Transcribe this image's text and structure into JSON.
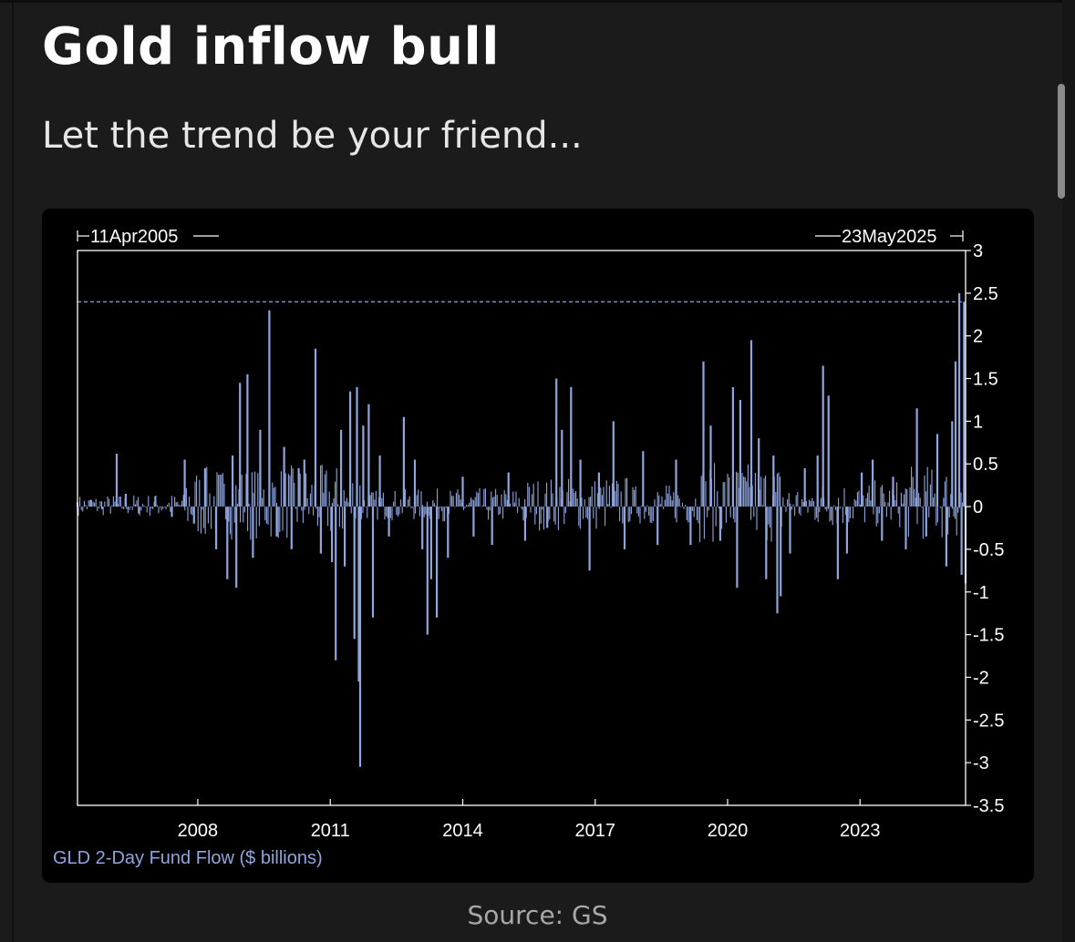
{
  "page": {
    "title": "Gold inflow bull",
    "subtitle": "Let the trend be your friend...",
    "source": "Source: GS"
  },
  "colors": {
    "background": "#1b1b1b",
    "chart_background": "#000000",
    "series": "#8fa5dd",
    "frame": "#ffffff",
    "reference_line": "#8fa5dd"
  },
  "chart_data": {
    "type": "bar",
    "title": "",
    "xlabel": "",
    "ylabel": "",
    "start_label": "11Apr2005",
    "end_label": "23May2025",
    "x_ticks": [
      "2008",
      "2011",
      "2014",
      "2017",
      "2020",
      "2023"
    ],
    "y_ticks": [
      "3",
      "2.5",
      "2",
      "1.5",
      "1",
      "0.5",
      "0",
      "-0.5",
      "-1",
      "-1.5",
      "-2",
      "-2.5",
      "-3",
      "-3.5"
    ],
    "ylim": [
      -3.5,
      3
    ],
    "xlim": [
      "2005-04-11",
      "2025-05-23"
    ],
    "y_axis_side": "right",
    "grid": false,
    "legend": "bottom-left",
    "reference_line": {
      "y": 2.4,
      "style": "dashed"
    },
    "series": [
      {
        "name": "GLD 2-Day Fund Flow ($ billions)",
        "points": [
          [
            "2005-04-11",
            0.05
          ],
          [
            "2005-08-01",
            0.08
          ],
          [
            "2005-11-01",
            -0.03
          ],
          [
            "2006-03-01",
            0.62
          ],
          [
            "2006-05-15",
            0.15
          ],
          [
            "2006-09-01",
            -0.08
          ],
          [
            "2007-01-15",
            0.12
          ],
          [
            "2007-06-01",
            -0.12
          ],
          [
            "2007-09-15",
            0.55
          ],
          [
            "2007-12-01",
            -0.2
          ],
          [
            "2008-03-01",
            0.45
          ],
          [
            "2008-06-01",
            -0.5
          ],
          [
            "2008-09-01",
            -0.85
          ],
          [
            "2008-10-15",
            0.6
          ],
          [
            "2008-11-15",
            -0.95
          ],
          [
            "2008-12-15",
            1.45
          ],
          [
            "2009-02-15",
            1.55
          ],
          [
            "2009-04-01",
            -0.6
          ],
          [
            "2009-06-01",
            0.9
          ],
          [
            "2009-08-15",
            2.3
          ],
          [
            "2009-10-15",
            -0.35
          ],
          [
            "2009-12-15",
            0.7
          ],
          [
            "2010-02-15",
            -0.5
          ],
          [
            "2010-04-15",
            0.45
          ],
          [
            "2010-06-01",
            0.55
          ],
          [
            "2010-09-01",
            1.85
          ],
          [
            "2010-10-15",
            -0.55
          ],
          [
            "2011-01-15",
            -0.65
          ],
          [
            "2011-02-15",
            -1.8
          ],
          [
            "2011-04-01",
            0.9
          ],
          [
            "2011-05-01",
            -0.7
          ],
          [
            "2011-06-15",
            1.35
          ],
          [
            "2011-07-20",
            -1.55
          ],
          [
            "2011-08-10",
            1.4
          ],
          [
            "2011-08-25",
            -2.05
          ],
          [
            "2011-09-05",
            -3.05
          ],
          [
            "2011-10-01",
            0.95
          ],
          [
            "2011-11-15",
            1.2
          ],
          [
            "2011-12-20",
            -1.3
          ],
          [
            "2012-02-15",
            0.6
          ],
          [
            "2012-05-01",
            -0.35
          ],
          [
            "2012-09-01",
            1.05
          ],
          [
            "2012-12-01",
            0.55
          ],
          [
            "2013-02-01",
            -0.5
          ],
          [
            "2013-03-15",
            -1.5
          ],
          [
            "2013-04-15",
            -0.85
          ],
          [
            "2013-06-01",
            -1.3
          ],
          [
            "2013-09-01",
            -0.6
          ],
          [
            "2014-01-01",
            0.35
          ],
          [
            "2014-04-01",
            -0.35
          ],
          [
            "2014-09-01",
            -0.45
          ],
          [
            "2015-01-15",
            0.4
          ],
          [
            "2015-06-01",
            -0.4
          ],
          [
            "2015-12-01",
            -0.25
          ],
          [
            "2016-02-15",
            1.5
          ],
          [
            "2016-04-01",
            0.9
          ],
          [
            "2016-06-15",
            1.4
          ],
          [
            "2016-09-01",
            0.55
          ],
          [
            "2016-11-15",
            -0.75
          ],
          [
            "2017-02-01",
            0.4
          ],
          [
            "2017-06-01",
            1.0
          ],
          [
            "2017-09-01",
            -0.5
          ],
          [
            "2018-02-01",
            0.65
          ],
          [
            "2018-06-01",
            -0.45
          ],
          [
            "2018-11-01",
            0.55
          ],
          [
            "2019-03-01",
            -0.45
          ],
          [
            "2019-06-15",
            1.7
          ],
          [
            "2019-08-15",
            0.95
          ],
          [
            "2019-11-01",
            -0.4
          ],
          [
            "2020-02-15",
            1.4
          ],
          [
            "2020-03-20",
            -0.95
          ],
          [
            "2020-04-15",
            1.25
          ],
          [
            "2020-07-15",
            1.95
          ],
          [
            "2020-09-15",
            0.8
          ],
          [
            "2020-11-15",
            -0.85
          ],
          [
            "2021-01-15",
            0.6
          ],
          [
            "2021-02-15",
            -1.25
          ],
          [
            "2021-03-15",
            -1.05
          ],
          [
            "2021-06-01",
            -0.55
          ],
          [
            "2021-10-01",
            0.45
          ],
          [
            "2022-01-15",
            0.6
          ],
          [
            "2022-03-01",
            1.65
          ],
          [
            "2022-04-15",
            1.3
          ],
          [
            "2022-07-01",
            -0.85
          ],
          [
            "2022-09-15",
            -0.55
          ],
          [
            "2023-01-15",
            0.4
          ],
          [
            "2023-04-15",
            0.55
          ],
          [
            "2023-07-01",
            -0.4
          ],
          [
            "2023-10-01",
            0.35
          ],
          [
            "2024-01-15",
            -0.5
          ],
          [
            "2024-04-15",
            1.15
          ],
          [
            "2024-07-01",
            -0.35
          ],
          [
            "2024-10-01",
            0.85
          ],
          [
            "2024-12-15",
            -0.7
          ],
          [
            "2025-02-01",
            1.0
          ],
          [
            "2025-03-01",
            1.7
          ],
          [
            "2025-04-01",
            2.5
          ],
          [
            "2025-04-20",
            -0.8
          ],
          [
            "2025-05-10",
            2.4
          ],
          [
            "2025-05-23",
            -0.9
          ]
        ]
      }
    ]
  }
}
